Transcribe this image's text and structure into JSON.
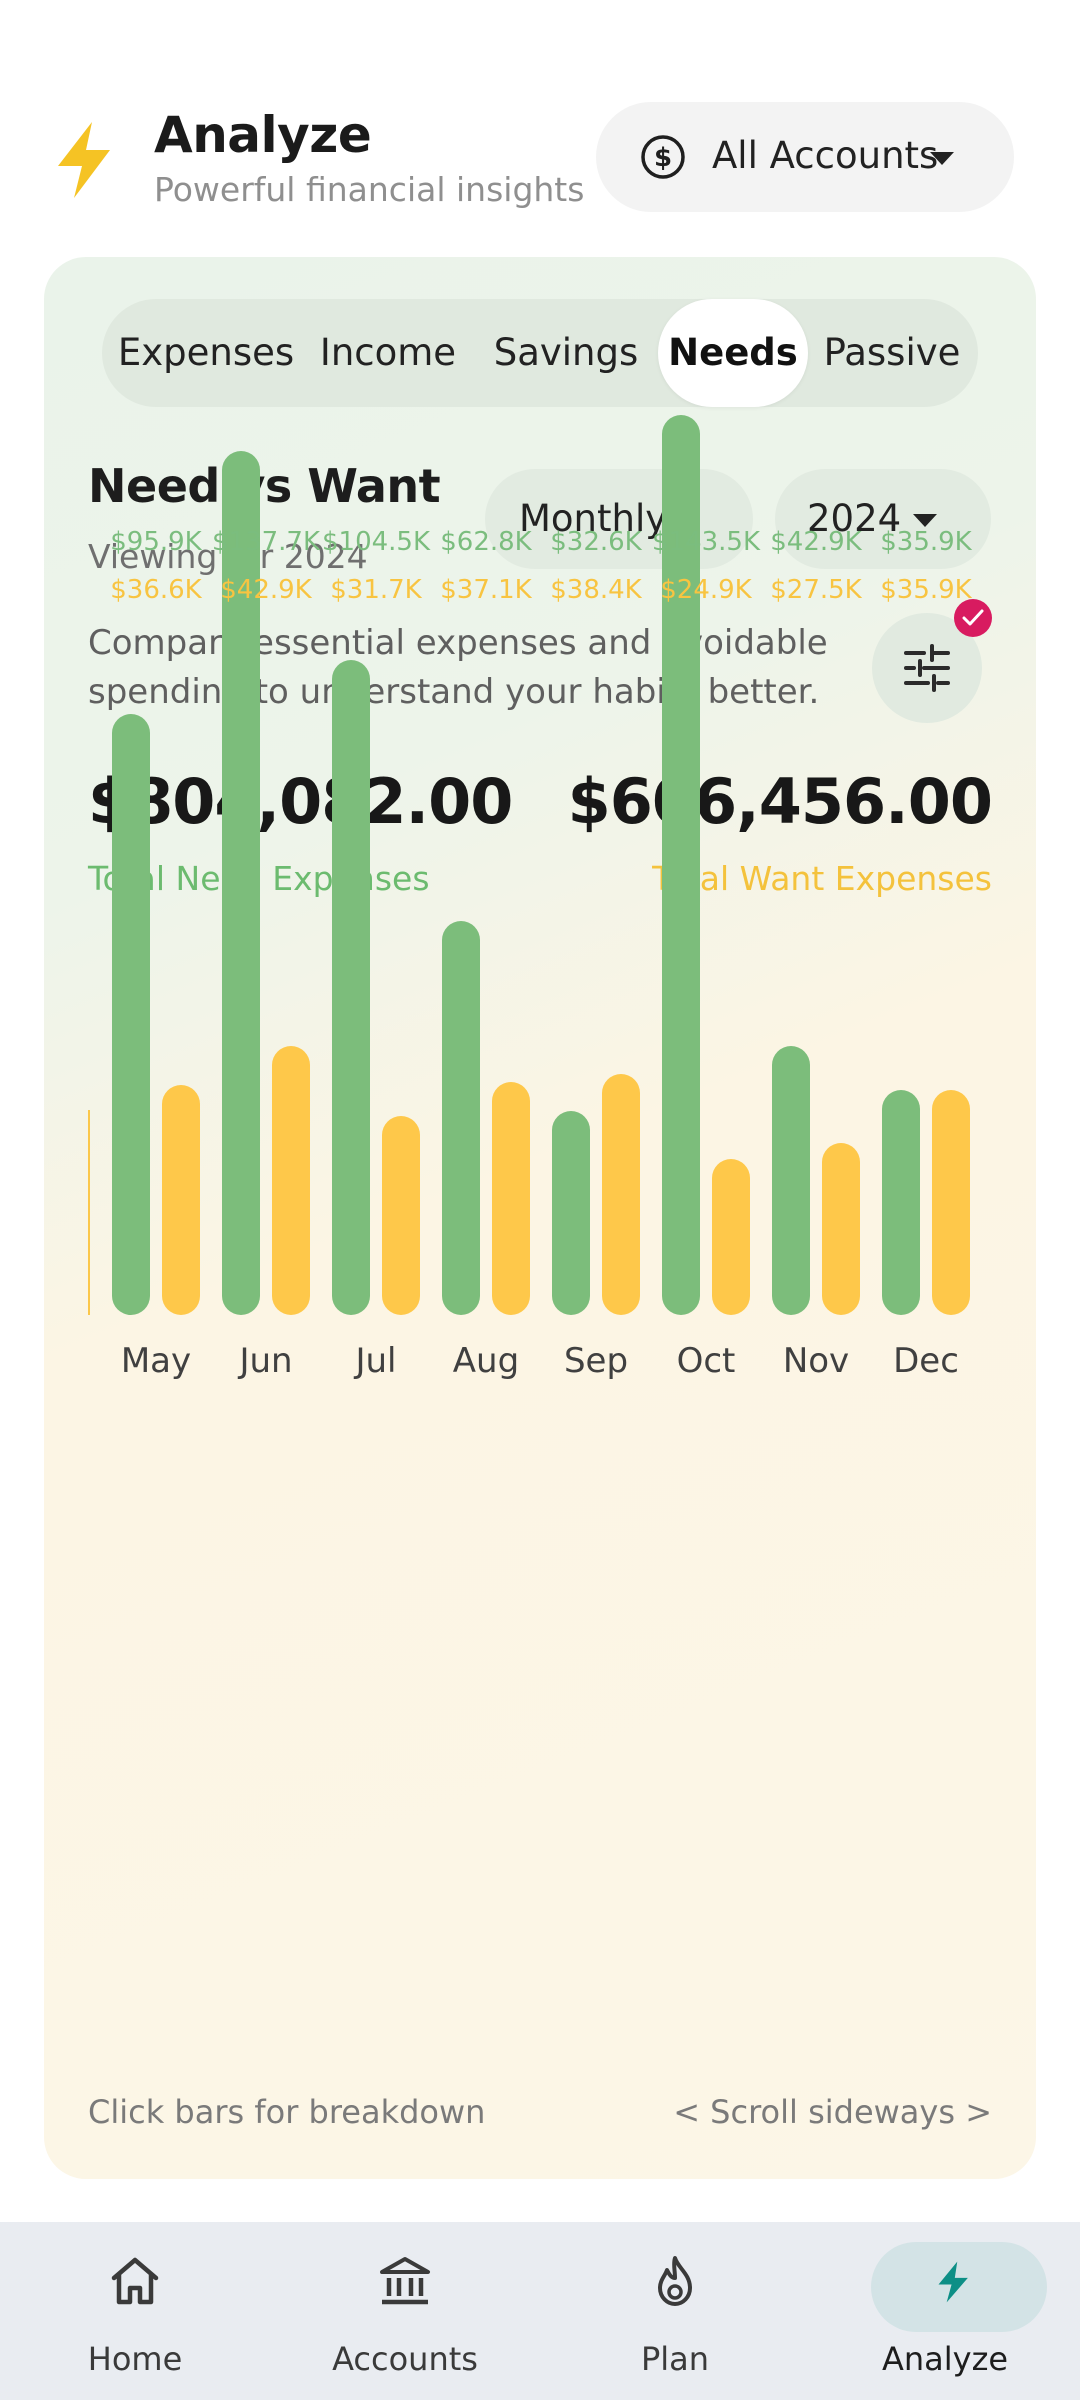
{
  "header": {
    "title": "Analyze",
    "subtitle": "Powerful financial insights",
    "accounts_label": "All Accounts"
  },
  "tabs": [
    {
      "label": "Expenses"
    },
    {
      "label": "Income"
    },
    {
      "label": "Savings"
    },
    {
      "label": "Needs",
      "active": true
    },
    {
      "label": "Passive"
    }
  ],
  "section": {
    "title": "Need vs Want",
    "subtitle": "Viewing for 2024",
    "period": "Monthly",
    "year": "2024",
    "description": "Compare essential expenses and avoidable spending to understand your habits better."
  },
  "totals": {
    "need_amount": "$804,082.00",
    "need_label": "Total Need Expenses",
    "want_amount": "$606,456.00",
    "want_label": "Total Want Expenses"
  },
  "chart_data": {
    "type": "bar",
    "categories": [
      "May",
      "Jun",
      "Jul",
      "Aug",
      "Sep",
      "Oct",
      "Nov",
      "Dec"
    ],
    "series": [
      {
        "values": [
          95.9,
          137.7,
          104.5,
          62.8,
          32.6,
          143.5,
          42.9,
          35.9
        ],
        "labels": [
          "$95.9K",
          "$137.7K",
          "$104.5K",
          "$62.8K",
          "$32.6K",
          "$143.5K",
          "$42.9K",
          "$35.9K"
        ],
        "color": "#7cbd7b"
      },
      {
        "values": [
          36.6,
          42.9,
          31.7,
          37.1,
          38.4,
          24.9,
          27.5,
          35.9
        ],
        "labels": [
          "$36.6K",
          "$42.9K",
          "$31.7K",
          "$37.1K",
          "$38.4K",
          "$24.9K",
          "$27.5K",
          "$35.9K"
        ],
        "color": "#fec84a"
      }
    ],
    "ylim": [
      0,
      143.5
    ]
  },
  "hints": {
    "left": "Click bars for breakdown",
    "right": "< Scroll sideways >"
  },
  "nav": [
    {
      "label": "Home",
      "icon": "home-icon"
    },
    {
      "label": "Accounts",
      "icon": "bank-icon"
    },
    {
      "label": "Plan",
      "icon": "flame-icon"
    },
    {
      "label": "Analyze",
      "icon": "bolt-icon",
      "active": true
    }
  ]
}
